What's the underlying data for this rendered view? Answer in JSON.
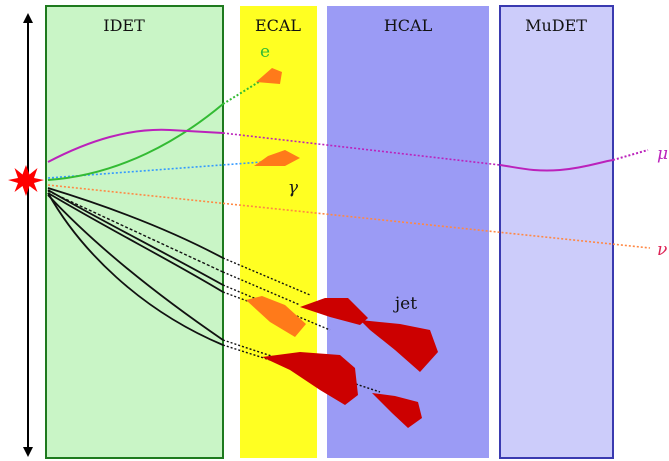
{
  "detectors": {
    "idet": {
      "label": "IDET",
      "color": "#c9f5c6",
      "border": "#1e7a1e"
    },
    "ecal": {
      "label": "ECAL",
      "color": "#ffff22"
    },
    "hcal": {
      "label": "HCAL",
      "color": "#9b9bf5"
    },
    "mudet": {
      "label": "MuDET",
      "color": "#ccccfa",
      "border": "#3a3ab0"
    }
  },
  "particles": {
    "electron": {
      "label": "e",
      "color": "#33bb33"
    },
    "photon": {
      "label": "γ",
      "color": "#1a1a1a"
    },
    "muon": {
      "label": "μ",
      "color": "#bb22bb"
    },
    "neutrino": {
      "label": "ν",
      "color": "#dd2255"
    },
    "jet": {
      "label": "jet",
      "color": "#111111"
    }
  },
  "colors": {
    "shower_orange": "#ff7a1a",
    "jet_red": "#cc0000",
    "vertex": "#ff0000",
    "photon_track": "#3399ff",
    "neutrino_track": "#ff8844"
  }
}
